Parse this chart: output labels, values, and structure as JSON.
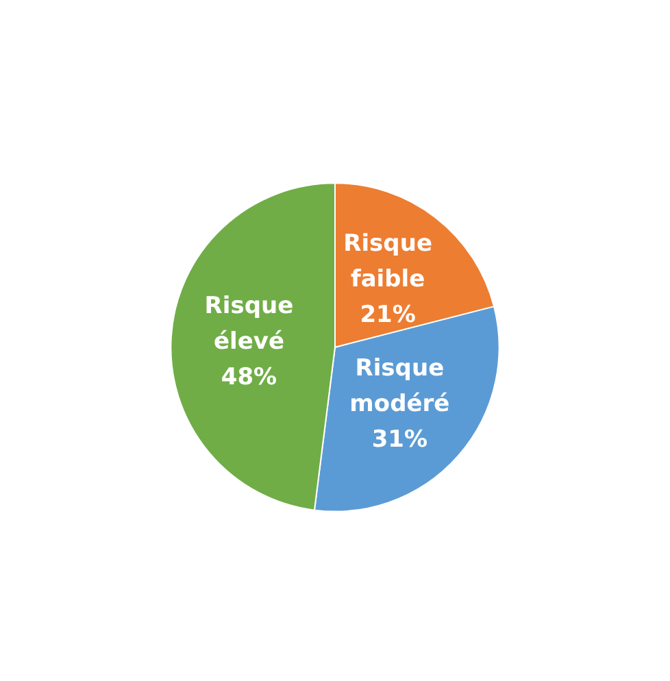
{
  "chart_data": {
    "type": "pie",
    "categories": [
      "Risque faible",
      "Risque modéré",
      "Risque élevé"
    ],
    "values": [
      21,
      31,
      48
    ],
    "value_labels": [
      "21%",
      "31%",
      "48%"
    ],
    "colors": [
      "#ed7d31",
      "#5b9bd5",
      "#70ad47"
    ]
  }
}
